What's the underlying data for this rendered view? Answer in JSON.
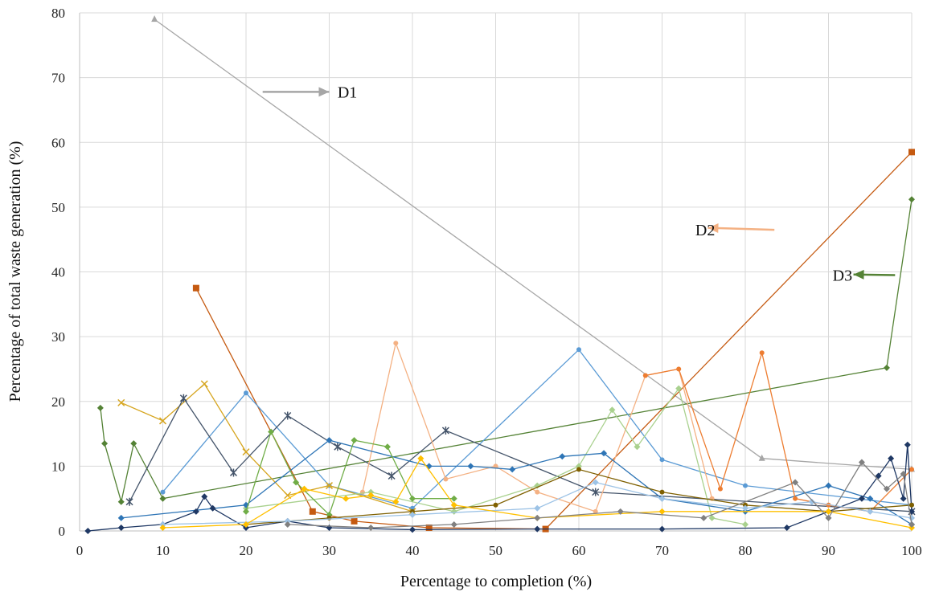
{
  "chart_data": {
    "type": "line",
    "title": "",
    "xlabel": "Percentage to completion (%)",
    "ylabel": "Percentage of total waste generation (%)",
    "xlim": [
      0,
      100
    ],
    "ylim": [
      0,
      80
    ],
    "x_ticks": [
      0,
      10,
      20,
      30,
      40,
      50,
      60,
      70,
      80,
      90,
      100
    ],
    "y_ticks": [
      0,
      10,
      20,
      30,
      40,
      50,
      60,
      70,
      80
    ],
    "grid": true,
    "legend": "none",
    "annotations": [
      {
        "text": "D1",
        "at": [
          31,
          67.8
        ],
        "arrow_from": [
          22,
          67.8
        ],
        "arrow_to": [
          30,
          67.8
        ],
        "color": "#a6a6a6"
      },
      {
        "text": "D2",
        "at": [
          74,
          46.5
        ],
        "arrow_from": [
          83.5,
          46.5
        ],
        "arrow_to": [
          75.5,
          46.8
        ],
        "color": "#f4b183"
      },
      {
        "text": "D3",
        "at": [
          90.5,
          39.5
        ],
        "arrow_from": [
          98,
          39.5
        ],
        "arrow_to": [
          93,
          39.6
        ],
        "color": "#548235"
      }
    ],
    "series": [
      {
        "color": "#a6a6a6",
        "marker": "triangle",
        "x": [
          9,
          82,
          100
        ],
        "y": [
          79,
          11.2,
          9.5
        ]
      },
      {
        "color": "#c55a11",
        "marker": "square",
        "x": [
          14,
          28,
          33,
          42,
          56,
          100
        ],
        "y": [
          37.5,
          3,
          1.5,
          0.5,
          0.3,
          58.5
        ]
      },
      {
        "color": "#548235",
        "marker": "diamond",
        "x": [
          2.5,
          3,
          5,
          6.5,
          10,
          97,
          100
        ],
        "y": [
          19,
          13.5,
          4.5,
          13.5,
          5,
          25.2,
          51.2
        ]
      },
      {
        "color": "#5b9bd5",
        "marker": "circle",
        "x": [
          10,
          20,
          30,
          40,
          60,
          70,
          80,
          100
        ],
        "y": [
          6,
          21.3,
          7,
          3.5,
          28,
          11,
          7,
          4
        ]
      },
      {
        "color": "#d6a51f",
        "marker": "x",
        "x": [
          5,
          10,
          15,
          20,
          25,
          30,
          40
        ],
        "y": [
          19.8,
          17,
          22.7,
          12.2,
          5.5,
          7,
          3
        ]
      },
      {
        "color": "#44546a",
        "marker": "star",
        "x": [
          6,
          12.5,
          18.5,
          25,
          31,
          37.5,
          44,
          62,
          100
        ],
        "y": [
          4.5,
          20.5,
          9,
          17.8,
          13,
          8.5,
          15.5,
          6,
          3
        ]
      },
      {
        "color": "#f4b183",
        "marker": "circle",
        "x": [
          34,
          38,
          44,
          50,
          55,
          62,
          68,
          72,
          76
        ],
        "y": [
          6,
          29,
          8,
          10,
          6,
          3,
          24,
          25,
          5
        ]
      },
      {
        "color": "#a9d18e",
        "marker": "diamond",
        "x": [
          20,
          35,
          45,
          55,
          60,
          64,
          67,
          72,
          76,
          80
        ],
        "y": [
          3.5,
          6,
          3,
          7,
          10,
          18.7,
          13,
          22,
          2,
          1
        ]
      },
      {
        "color": "#2e75b6",
        "marker": "diamond",
        "x": [
          5,
          20,
          30,
          42,
          47,
          52,
          58,
          63,
          70,
          80,
          90,
          95,
          100
        ],
        "y": [
          2,
          4,
          14,
          10,
          10,
          9.5,
          11.5,
          12,
          5,
          3,
          7,
          5,
          1
        ]
      },
      {
        "color": "#ed7d31",
        "marker": "circle",
        "x": [
          68,
          72,
          77,
          82,
          86,
          90,
          95,
          100
        ],
        "y": [
          24,
          25,
          6.5,
          27.5,
          5,
          4,
          3,
          9.5
        ]
      },
      {
        "color": "#70ad47",
        "marker": "diamond",
        "x": [
          20,
          23,
          26,
          30,
          33,
          37,
          40,
          45
        ],
        "y": [
          3,
          15.3,
          7.5,
          2.5,
          14,
          13,
          5,
          5
        ]
      },
      {
        "color": "#1f3864",
        "marker": "diamond",
        "x": [
          1,
          5,
          10,
          14,
          15,
          16,
          20,
          25,
          30,
          40,
          55,
          70,
          85,
          94,
          96,
          97.5,
          99,
          99.5,
          100
        ],
        "y": [
          0,
          0.5,
          1,
          3,
          5.3,
          3.5,
          0.5,
          1.5,
          0.5,
          0.2,
          0.3,
          0.3,
          0.5,
          5,
          8.5,
          11.2,
          5,
          13.3,
          3
        ]
      },
      {
        "color": "#7f6000",
        "marker": "circle",
        "x": [
          20,
          30,
          40,
          50,
          60,
          70,
          80,
          90,
          100
        ],
        "y": [
          1,
          2,
          3,
          4,
          9.5,
          6,
          4,
          3,
          4
        ]
      },
      {
        "color": "#9dc3e6",
        "marker": "diamond",
        "x": [
          10,
          25,
          40,
          55,
          62,
          70,
          80,
          88,
          95,
          100
        ],
        "y": [
          1,
          1.5,
          2.5,
          3.5,
          7.5,
          5,
          3.5,
          4.5,
          3,
          2
        ]
      },
      {
        "color": "#ffc000",
        "marker": "diamond",
        "x": [
          10,
          20,
          27,
          32,
          35,
          38,
          41,
          45,
          55,
          70,
          90,
          100
        ],
        "y": [
          0.5,
          1,
          6.5,
          5,
          5.5,
          4.5,
          11.2,
          4,
          2,
          3,
          3,
          0.5
        ]
      },
      {
        "color": "#808080",
        "marker": "diamond",
        "x": [
          25,
          35,
          45,
          55,
          65,
          75,
          86,
          90,
          94,
          97,
          99,
          100
        ],
        "y": [
          1,
          0.5,
          1,
          2,
          3,
          2,
          7.5,
          2,
          10.6,
          6.5,
          8.8,
          1
        ]
      }
    ]
  }
}
